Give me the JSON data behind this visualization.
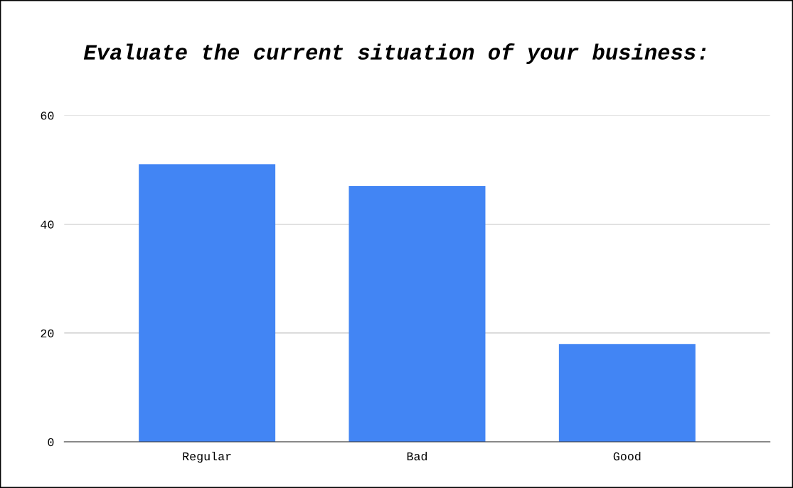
{
  "chart_data": {
    "type": "bar",
    "title": "Evaluate the current situation of your business:",
    "categories": [
      "Regular",
      "Bad",
      "Good"
    ],
    "values": [
      51,
      47,
      18
    ],
    "color": "#4285f4",
    "ylim": [
      0,
      60
    ],
    "yticks": [
      0,
      20,
      40,
      60
    ],
    "grid": "y",
    "legend": false
  }
}
